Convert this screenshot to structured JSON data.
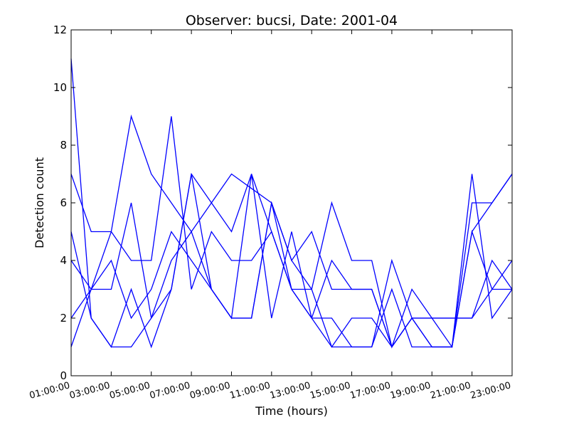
{
  "chart_data": {
    "type": "line",
    "title": "Observer: bucsi, Date: 2001-04",
    "xlabel": "Time (hours)",
    "ylabel": "Detection count",
    "ylim": [
      0,
      12
    ],
    "y_ticks": [
      "0",
      "2",
      "4",
      "6",
      "8",
      "10",
      "12"
    ],
    "x_ticks": [
      "01:00:00",
      "03:00:00",
      "05:00:00",
      "07:00:00",
      "09:00:00",
      "11:00:00",
      "13:00:00",
      "15:00:00",
      "17:00:00",
      "19:00:00",
      "21:00:00",
      "23:00:00"
    ],
    "x_range_hours": [
      1,
      23
    ],
    "line_color": "#0000ff",
    "grid": false,
    "series": [
      {
        "x": [
          1,
          2,
          3,
          4,
          5,
          6,
          7,
          8,
          9,
          10,
          11,
          12,
          13,
          14,
          15,
          16,
          17,
          18,
          19,
          21,
          22,
          23
        ],
        "values": [
          11,
          2,
          1,
          1,
          2,
          4,
          5,
          6,
          7,
          6.5,
          6,
          4,
          5,
          3,
          3,
          3,
          1,
          2,
          2,
          2,
          3,
          3
        ]
      },
      {
        "x": [
          1,
          2,
          3,
          4,
          5,
          6,
          7,
          8,
          9,
          10,
          11,
          12,
          13,
          14,
          15,
          16,
          17,
          18,
          19,
          20,
          21,
          22,
          23
        ],
        "values": [
          7,
          5,
          5,
          4,
          4,
          9,
          3,
          5,
          4,
          4,
          5,
          3,
          3,
          1,
          2,
          2,
          1,
          2,
          2,
          2,
          2,
          4,
          3
        ]
      },
      {
        "x": [
          1,
          2,
          3,
          4,
          5,
          6,
          7,
          8,
          9,
          10,
          11,
          12,
          13,
          14,
          15,
          16,
          17,
          18,
          19,
          20,
          21,
          22,
          23
        ],
        "values": [
          5,
          2,
          1,
          3,
          1,
          3,
          7,
          6,
          5,
          7,
          2,
          5,
          2,
          1,
          1,
          1,
          4,
          2,
          1,
          1,
          7,
          2,
          3
        ]
      },
      {
        "x": [
          1,
          2,
          3,
          4,
          5,
          6,
          7,
          8,
          9,
          10,
          11,
          12,
          13,
          14,
          15,
          16,
          17,
          18,
          19,
          20,
          21,
          22,
          23
        ],
        "values": [
          4,
          3,
          3,
          6,
          2,
          3,
          7,
          3,
          2,
          2,
          6,
          4,
          3,
          6,
          4,
          4,
          1,
          3,
          2,
          1,
          5,
          3,
          4
        ]
      },
      {
        "x": [
          1,
          2,
          3,
          4,
          5,
          6,
          7,
          8,
          9,
          10,
          11,
          12,
          13,
          14,
          15,
          16,
          17,
          18,
          19,
          20,
          21,
          22,
          23
        ],
        "values": [
          2,
          3,
          4,
          2,
          3,
          5,
          4,
          3,
          2,
          7,
          5,
          3,
          2,
          4,
          3,
          3,
          1,
          2,
          1,
          1,
          5,
          6,
          7
        ]
      },
      {
        "x": [
          1,
          2,
          3,
          4,
          5,
          6,
          7,
          8,
          9,
          10,
          11,
          12,
          13,
          14,
          15,
          16,
          17,
          18,
          19,
          20,
          21,
          22,
          23
        ],
        "values": [
          1,
          3,
          5,
          9,
          7,
          6,
          5,
          3,
          2,
          2,
          6,
          3,
          2,
          2,
          1,
          1,
          3,
          1,
          1,
          1,
          6,
          6,
          7
        ]
      }
    ]
  }
}
